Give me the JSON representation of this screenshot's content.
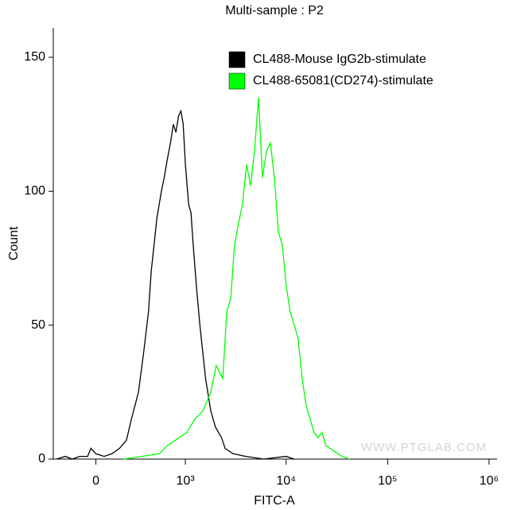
{
  "chart_data": {
    "type": "line",
    "title": "Multi-sample : P2",
    "x_label": "FITC-A",
    "y_label": "Count",
    "x_scale": "biexponential",
    "watermark": "WWW.PTGLAB.COM",
    "legend": "top-right",
    "xlim": [
      -300,
      1200000
    ],
    "xticks": [
      0,
      {
        "value": 1000,
        "label": "10³"
      },
      {
        "value": 10000,
        "label": "10⁴"
      },
      {
        "value": 100000,
        "label": "10⁵"
      },
      {
        "value": 1000000,
        "label": "10⁶"
      }
    ],
    "ylim": [
      0,
      161
    ],
    "yticks": [
      0,
      50,
      100,
      150
    ],
    "series": [
      {
        "name": "CL488-Mouse IgG2b-stimulate",
        "color": "#000000",
        "x": [
          -270,
          -200,
          -150,
          -100,
          -50,
          -30,
          0,
          50,
          100,
          150,
          200,
          240,
          300,
          350,
          400,
          430,
          500,
          560,
          600,
          650,
          700,
          750,
          800,
          850,
          900,
          950,
          1000,
          1080,
          1140,
          1200,
          1290,
          1400,
          1600,
          1800,
          2000,
          2300,
          2500,
          3000,
          4000,
          6000,
          10000,
          12000
        ],
        "values": [
          0,
          1,
          0,
          1,
          1,
          4,
          2,
          1,
          2,
          4,
          7,
          15,
          25,
          40,
          55,
          70,
          90,
          100,
          105,
          112,
          118,
          125,
          122,
          128,
          130,
          125,
          110,
          95,
          92,
          80,
          65,
          50,
          30,
          18,
          12,
          8,
          4,
          2,
          1,
          0,
          1,
          0
        ]
      },
      {
        "name": "CL488-65081(CD274)-stimulate",
        "color": "#00ff00",
        "x": [
          179,
          531,
          646,
          862,
          1038,
          1252,
          1503,
          1805,
          2040,
          2371,
          2595,
          2840,
          3100,
          3390,
          3710,
          4080,
          4460,
          4880,
          5340,
          5850,
          6400,
          7000,
          7660,
          8380,
          9170,
          10000,
          10970,
          12010,
          13140,
          14400,
          15750,
          17220,
          18850,
          20600,
          22550,
          24690,
          29550,
          35370,
          42340
        ],
        "values": [
          0,
          2,
          5,
          8,
          10,
          15,
          18,
          25,
          35,
          30,
          55,
          60,
          80,
          88,
          95,
          110,
          102,
          115,
          135,
          105,
          115,
          118,
          105,
          85,
          80,
          65,
          55,
          50,
          45,
          30,
          20,
          15,
          10,
          8,
          10,
          5,
          3,
          1,
          0
        ]
      }
    ]
  }
}
